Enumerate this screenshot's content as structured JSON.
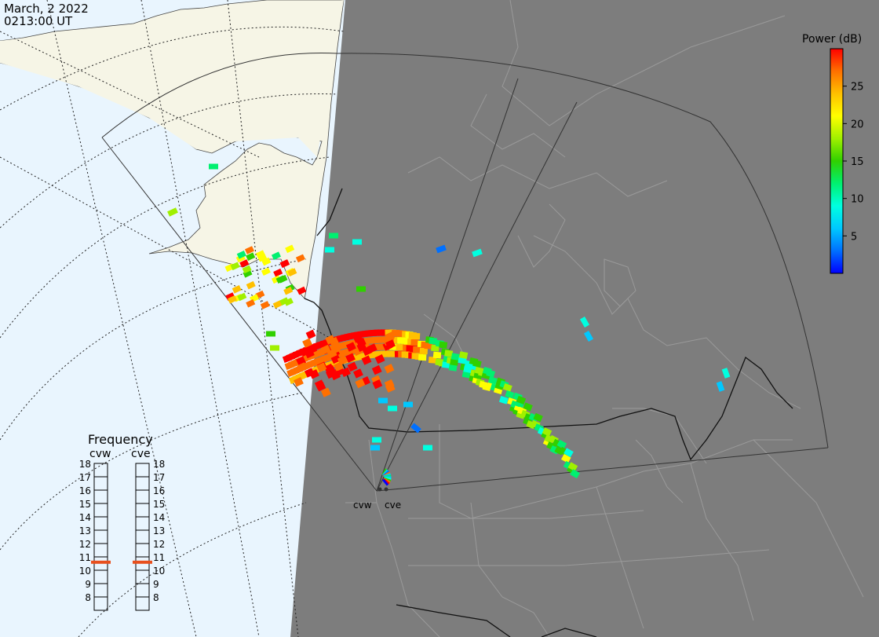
{
  "header": {
    "date": "March, 2 2022",
    "time": "0213:00 UT"
  },
  "colorbar": {
    "title": "Power (dB)",
    "ticks": [
      25,
      20,
      15,
      10,
      5
    ],
    "range": [
      0,
      30
    ],
    "colors": [
      "#0000ff",
      "#0070ff",
      "#00c8ff",
      "#00ffe0",
      "#00f070",
      "#30d000",
      "#a0f000",
      "#ffff00",
      "#ffc000",
      "#ff7000",
      "#ff0000"
    ]
  },
  "frequency": {
    "title": "Frequency",
    "radars": [
      "cvw",
      "cve"
    ],
    "scale": [
      "18",
      "17",
      "16",
      "15",
      "14",
      "13",
      "12",
      "11",
      "10",
      "9",
      "8"
    ],
    "range_mhz": [
      8,
      18
    ],
    "current_mhz": [
      10.6,
      10.6
    ],
    "marker_color": "#e8501e"
  },
  "map": {
    "ocean_color": "#e9f5fe",
    "land_day_color": "#f6f5e6",
    "night_color": "#7d7d7d",
    "border_color": "#9a9a9a",
    "site_labels": [
      "cvw",
      "cve"
    ]
  }
}
